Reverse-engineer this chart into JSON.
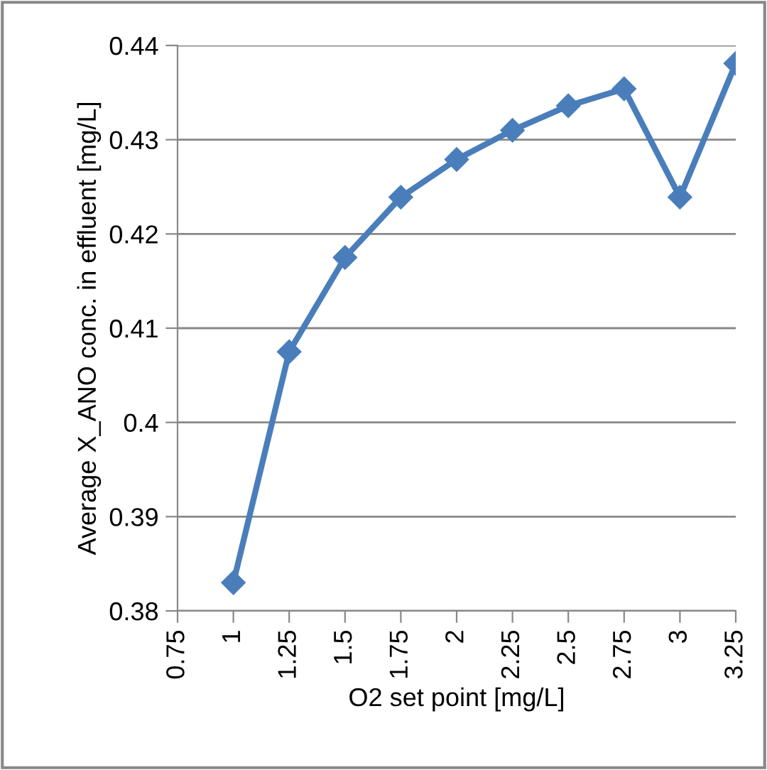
{
  "chart_data": {
    "type": "line",
    "xlabel": "O2 set point [mg/L]",
    "ylabel": "Average X_ANO conc. in effluent [mg/L]",
    "x": [
      1,
      1.25,
      1.5,
      1.75,
      2,
      2.25,
      2.5,
      2.75,
      3,
      3.25
    ],
    "series": [
      {
        "color": "#4a7ebb",
        "values": [
          0.383,
          0.4075,
          0.4175,
          0.4239,
          0.4279,
          0.431,
          0.4336,
          0.4354,
          0.4239,
          0.4381
        ]
      }
    ],
    "xlim": [
      0.75,
      3.25
    ],
    "xticks": [
      0.75,
      1,
      1.25,
      1.5,
      1.75,
      2,
      2.25,
      2.5,
      2.75,
      3,
      3.25
    ],
    "ylim": [
      0.38,
      0.44
    ],
    "yticks": [
      0.38,
      0.39,
      {
        "value": 0.4,
        "label": "0.4"
      },
      0.41,
      0.42,
      0.43,
      0.44
    ],
    "grid": "y",
    "marker": "diamond",
    "line_style": "solid"
  }
}
